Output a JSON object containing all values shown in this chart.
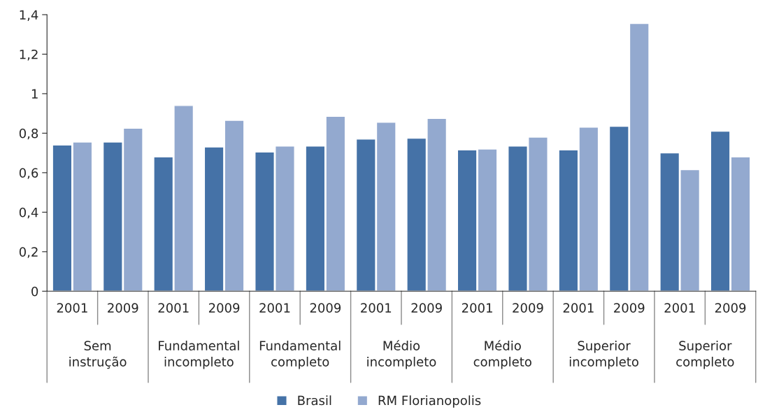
{
  "chart_data": {
    "type": "bar",
    "categories": [
      "2001",
      "2009",
      "2001",
      "2009",
      "2001",
      "2009",
      "2001",
      "2009",
      "2001",
      "2009",
      "2001",
      "2009",
      "2001",
      "2009"
    ],
    "annotations": [
      "Sem\ninstrução",
      "Fundamental\nincompleto",
      "Fundamental\ncompleto",
      "Médio\nincompleto",
      "Médio\ncompleto",
      "Superior\nincompleto",
      "Superior\ncompleto"
    ],
    "series": [
      {
        "name": "Brasil",
        "color": "#4572a7",
        "values": [
          0.74,
          0.755,
          0.68,
          0.73,
          0.705,
          0.735,
          0.77,
          0.775,
          0.715,
          0.735,
          0.715,
          0.835,
          0.7,
          0.81
        ]
      },
      {
        "name": "RM Florianopolis",
        "color": "#93a9cf",
        "values": [
          0.755,
          0.825,
          0.94,
          0.865,
          0.735,
          0.885,
          0.855,
          0.875,
          0.72,
          0.78,
          0.83,
          1.355,
          0.615,
          0.68
        ]
      }
    ],
    "ylim": [
      0,
      1.4
    ],
    "yticks": [
      {
        "value": 0,
        "label": "0"
      },
      {
        "value": 0.2,
        "label": "0,2"
      },
      {
        "value": 0.4,
        "label": "0,4"
      },
      {
        "value": 0.6,
        "label": "0,6"
      },
      {
        "value": 0.8,
        "label": "0,8"
      },
      {
        "value": 1,
        "label": "1"
      },
      {
        "value": 1.2,
        "label": "1,2"
      },
      {
        "value": 1.4,
        "label": "1,4"
      }
    ],
    "grid": false,
    "legend": "bottom"
  }
}
